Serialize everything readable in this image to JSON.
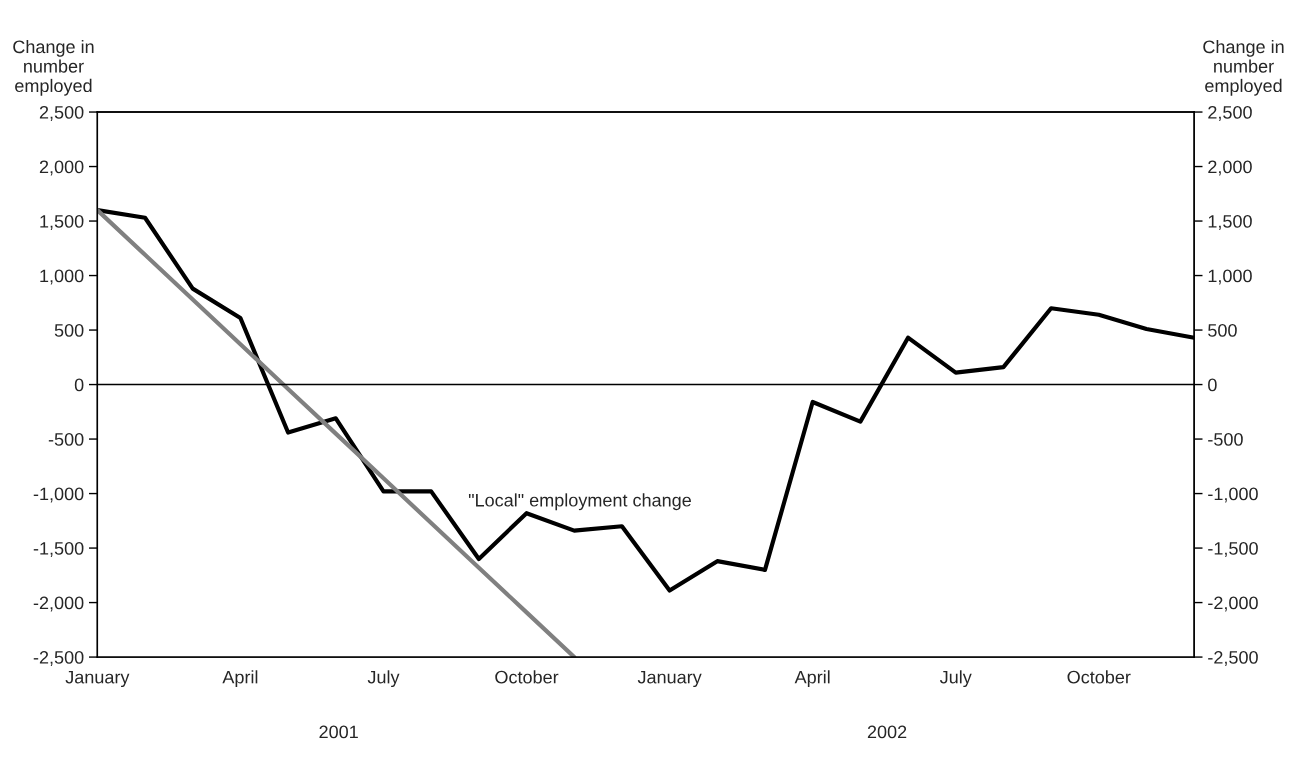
{
  "chart_data": {
    "type": "line",
    "ylabel": "Change in\nnumber\nemployed",
    "y2label": "Change in\nnumber\nemployed",
    "categories": [
      "January",
      null,
      null,
      "April",
      null,
      null,
      "July",
      null,
      null,
      "October",
      null,
      null,
      "January",
      null,
      null,
      "April",
      null,
      null,
      "July",
      null,
      null,
      "October",
      null,
      null
    ],
    "series": [
      {
        "color": "#000000",
        "values": [
          1600,
          1530,
          880,
          610,
          -440,
          -310,
          -980,
          -980,
          -1600,
          -1180,
          -1340,
          -1300,
          -1890,
          -1620,
          -1700,
          -160,
          -340,
          430,
          110,
          160,
          700,
          640,
          510,
          430
        ]
      },
      {
        "type": "line",
        "color": "#808080",
        "values": [
          1600,
          1190,
          780,
          370,
          -40,
          -450,
          -860,
          -1270,
          -1680,
          -2090,
          -2500,
          null,
          null,
          null,
          null,
          null,
          null,
          null,
          null,
          null,
          null,
          null,
          null,
          null
        ]
      }
    ],
    "ylim": [
      -2500,
      2500
    ],
    "yticks": [
      {
        "value": -2500,
        "label": "-2,500"
      },
      {
        "value": -2000,
        "label": "-2,000"
      },
      {
        "value": -1500,
        "label": "-1,500"
      },
      {
        "value": -1000,
        "label": "-1,000"
      },
      {
        "value": -500,
        "label": "-500"
      },
      0,
      {
        "value": 500,
        "label": "500"
      },
      {
        "value": 1000,
        "label": "1,000"
      },
      {
        "value": 1500,
        "label": "1,500"
      },
      {
        "value": 2000,
        "label": "2,000"
      },
      {
        "value": 2500,
        "label": "2,500"
      }
    ],
    "y2lim": [
      -2500,
      2500
    ],
    "y2ticks": [
      {
        "value": -2500,
        "label": "-2,500"
      },
      {
        "value": -2000,
        "label": "-2,000"
      },
      {
        "value": -1500,
        "label": "-1,500"
      },
      {
        "value": -1000,
        "label": "-1,000"
      },
      {
        "value": -500,
        "label": "-500"
      },
      0,
      {
        "value": 500,
        "label": "500"
      },
      {
        "value": 1000,
        "label": "1,000"
      },
      {
        "value": 1500,
        "label": "1,500"
      },
      {
        "value": 2000,
        "label": "2,000"
      },
      {
        "value": 2500,
        "label": "2,500"
      }
    ],
    "ref_lines": [
      {
        "axis": "y",
        "value": 0,
        "color": "#000000"
      }
    ],
    "annotations": [
      "\"Local\" employment change",
      "2001",
      "2002"
    ],
    "grid": false,
    "legend": false,
    "marker": "none",
    "line_style": "solid"
  }
}
